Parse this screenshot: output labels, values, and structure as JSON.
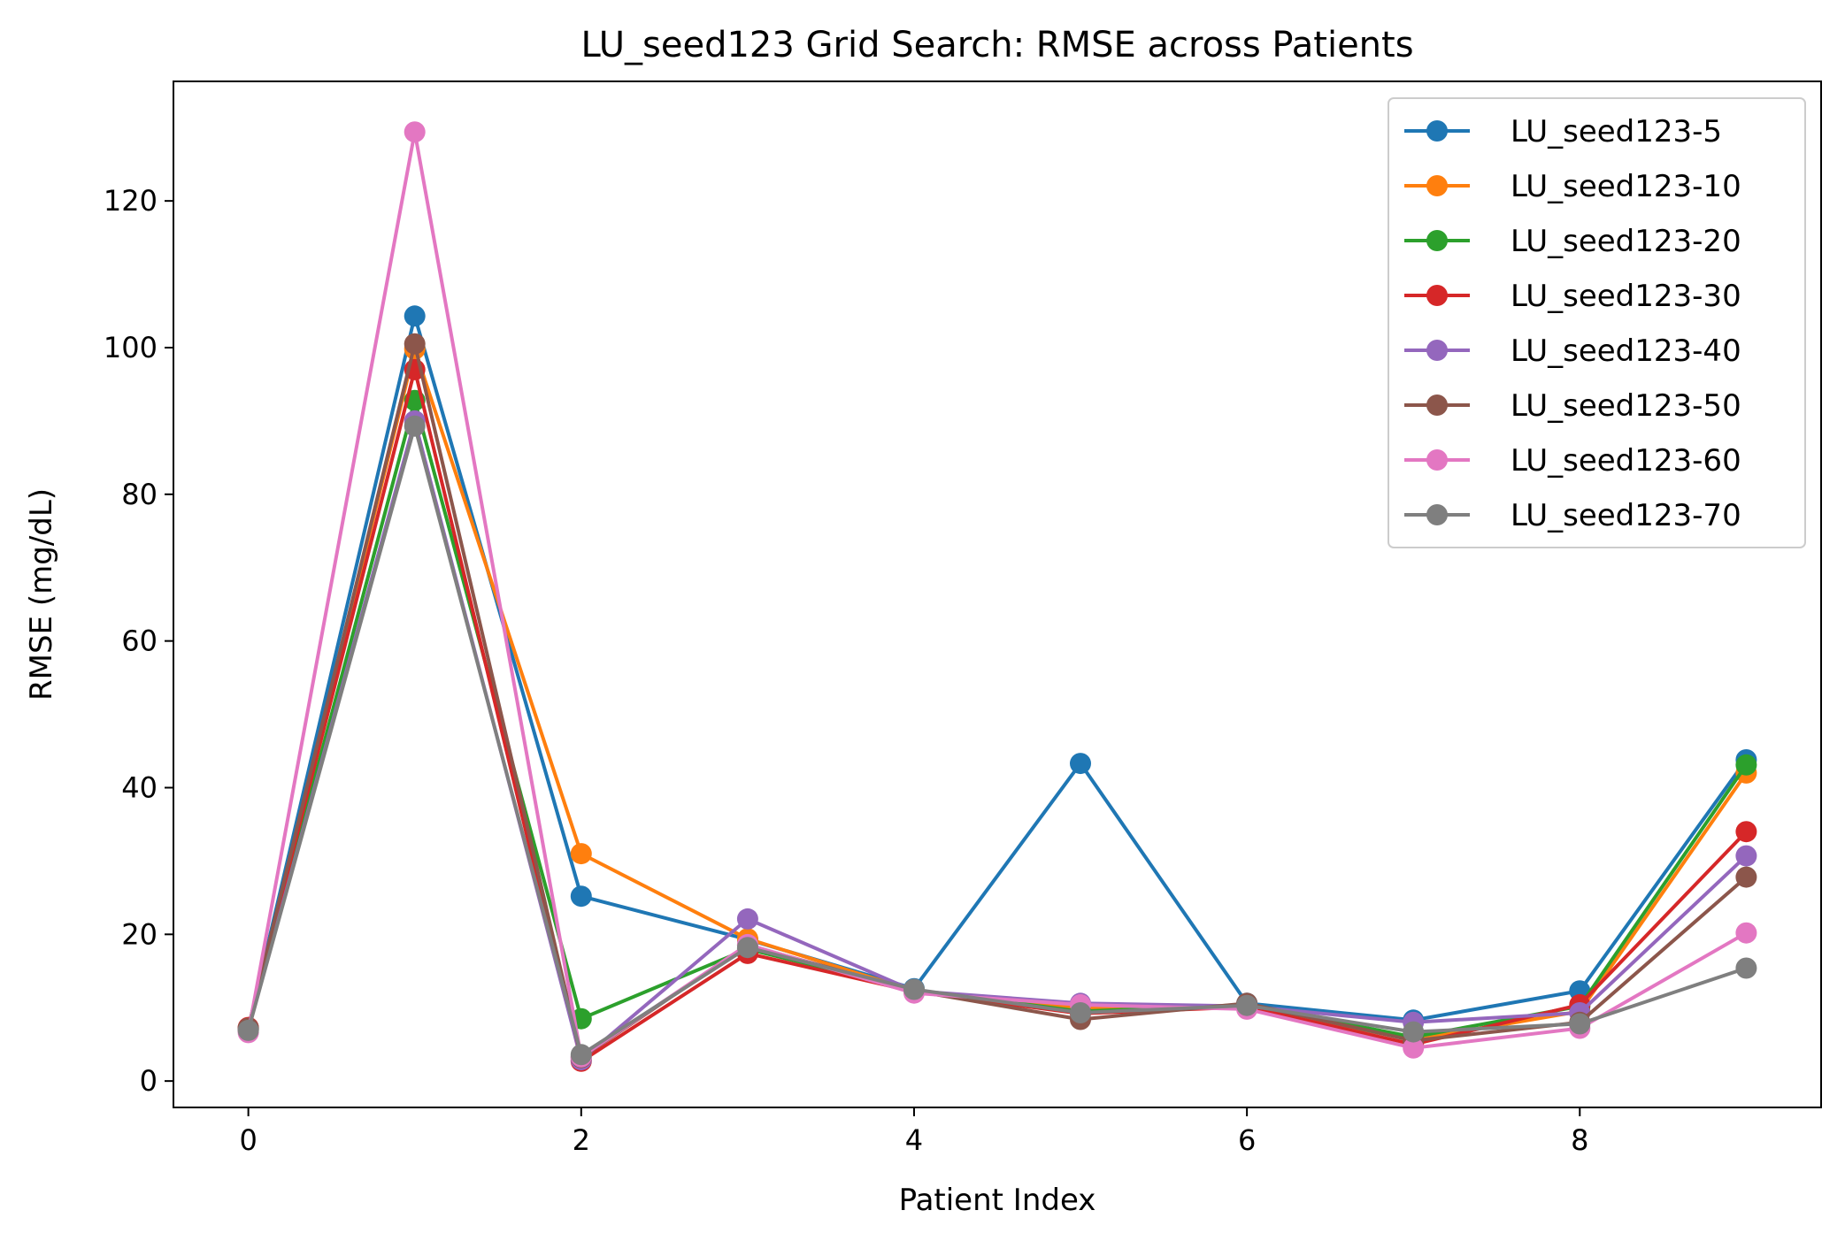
{
  "chart_data": {
    "type": "line",
    "title": "LU_seed123 Grid Search: RMSE across Patients",
    "xlabel": "Patient Index",
    "ylabel": "RMSE (mg/dL)",
    "x": [
      0,
      1,
      2,
      3,
      4,
      5,
      6,
      7,
      8,
      9
    ],
    "xlim": [
      -0.45,
      9.45
    ],
    "ylim": [
      -3.6,
      136.3
    ],
    "xticks": [
      0,
      2,
      4,
      6,
      8
    ],
    "yticks": [
      0,
      20,
      40,
      60,
      80,
      100,
      120
    ],
    "grid": false,
    "legend_position": "top-right",
    "series": [
      {
        "name": "LU_seed123-5",
        "color": "#1f77b4",
        "values": [
          7.2,
          104.3,
          25.2,
          19.3,
          12.6,
          43.3,
          10.6,
          8.3,
          12.3,
          43.8
        ]
      },
      {
        "name": "LU_seed123-10",
        "color": "#ff7f0e",
        "values": [
          7.0,
          99.8,
          31.0,
          19.4,
          12.3,
          10.0,
          10.2,
          5.6,
          9.5,
          42.0
        ]
      },
      {
        "name": "LU_seed123-20",
        "color": "#2ca02c",
        "values": [
          7.1,
          92.8,
          8.5,
          18.0,
          12.4,
          9.5,
          10.4,
          6.0,
          10.2,
          43.1
        ]
      },
      {
        "name": "LU_seed123-30",
        "color": "#d62728",
        "values": [
          7.3,
          97.0,
          2.7,
          17.4,
          12.2,
          9.2,
          10.1,
          5.0,
          10.4,
          34.0
        ]
      },
      {
        "name": "LU_seed123-40",
        "color": "#9467bd",
        "values": [
          7.0,
          90.0,
          2.9,
          22.1,
          12.3,
          10.6,
          10.2,
          8.0,
          9.3,
          30.7
        ]
      },
      {
        "name": "LU_seed123-50",
        "color": "#8c564b",
        "values": [
          7.2,
          100.5,
          3.2,
          18.5,
          12.3,
          8.4,
          10.6,
          5.5,
          8.0,
          27.8
        ]
      },
      {
        "name": "LU_seed123-60",
        "color": "#e377c2",
        "values": [
          6.6,
          129.4,
          3.3,
          18.6,
          12.0,
          10.4,
          9.8,
          4.5,
          7.2,
          20.2
        ]
      },
      {
        "name": "LU_seed123-70",
        "color": "#7f7f7f",
        "values": [
          6.9,
          89.3,
          3.6,
          18.2,
          12.5,
          9.3,
          10.3,
          6.7,
          7.8,
          15.4
        ]
      }
    ]
  }
}
